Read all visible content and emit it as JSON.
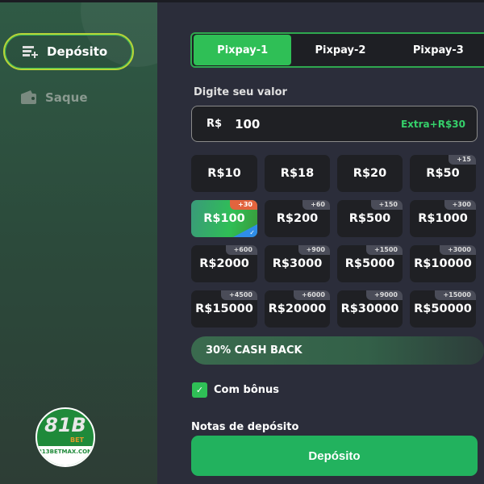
{
  "sidebar": {
    "items": [
      {
        "label": "Depósito",
        "icon": "card-plus-icon",
        "active": true
      },
      {
        "label": "Saque",
        "icon": "wallet-icon",
        "active": false
      }
    ],
    "logo": {
      "text": "81B",
      "sub": "BET",
      "domain": "813BETMAX.COM"
    }
  },
  "tabs": [
    {
      "label": "Pixpay-1",
      "active": true
    },
    {
      "label": "Pixpay-2"
    },
    {
      "label": "Pixpay-3"
    }
  ],
  "amount": {
    "label": "Digite seu valor",
    "currency": "R$",
    "value": "100",
    "extra": "Extra+R$30"
  },
  "presets": [
    {
      "label": "R$10",
      "bonus": ""
    },
    {
      "label": "R$18",
      "bonus": ""
    },
    {
      "label": "R$20",
      "bonus": ""
    },
    {
      "label": "R$50",
      "bonus": "+15"
    },
    {
      "label": "R$100",
      "bonus": "+30",
      "selected": true
    },
    {
      "label": "R$200",
      "bonus": "+60"
    },
    {
      "label": "R$500",
      "bonus": "+150"
    },
    {
      "label": "R$1000",
      "bonus": "+300"
    },
    {
      "label": "R$2000",
      "bonus": "+600"
    },
    {
      "label": "R$3000",
      "bonus": "+900"
    },
    {
      "label": "R$5000",
      "bonus": "+1500"
    },
    {
      "label": "R$10000",
      "bonus": "+3000"
    },
    {
      "label": "R$15000",
      "bonus": "+4500"
    },
    {
      "label": "R$20000",
      "bonus": "+6000"
    },
    {
      "label": "R$30000",
      "bonus": "+9000"
    },
    {
      "label": "R$50000",
      "bonus": "+15000"
    }
  ],
  "cashback": "30% CASH BACK",
  "bonus": {
    "label": "Com bônus",
    "checked": true
  },
  "notes_label": "Notas de depósito",
  "submit_label": "Depósito",
  "colors": {
    "accent": "#2fbf56",
    "extra": "#35d06a",
    "badge_selected": "#e2643e"
  }
}
